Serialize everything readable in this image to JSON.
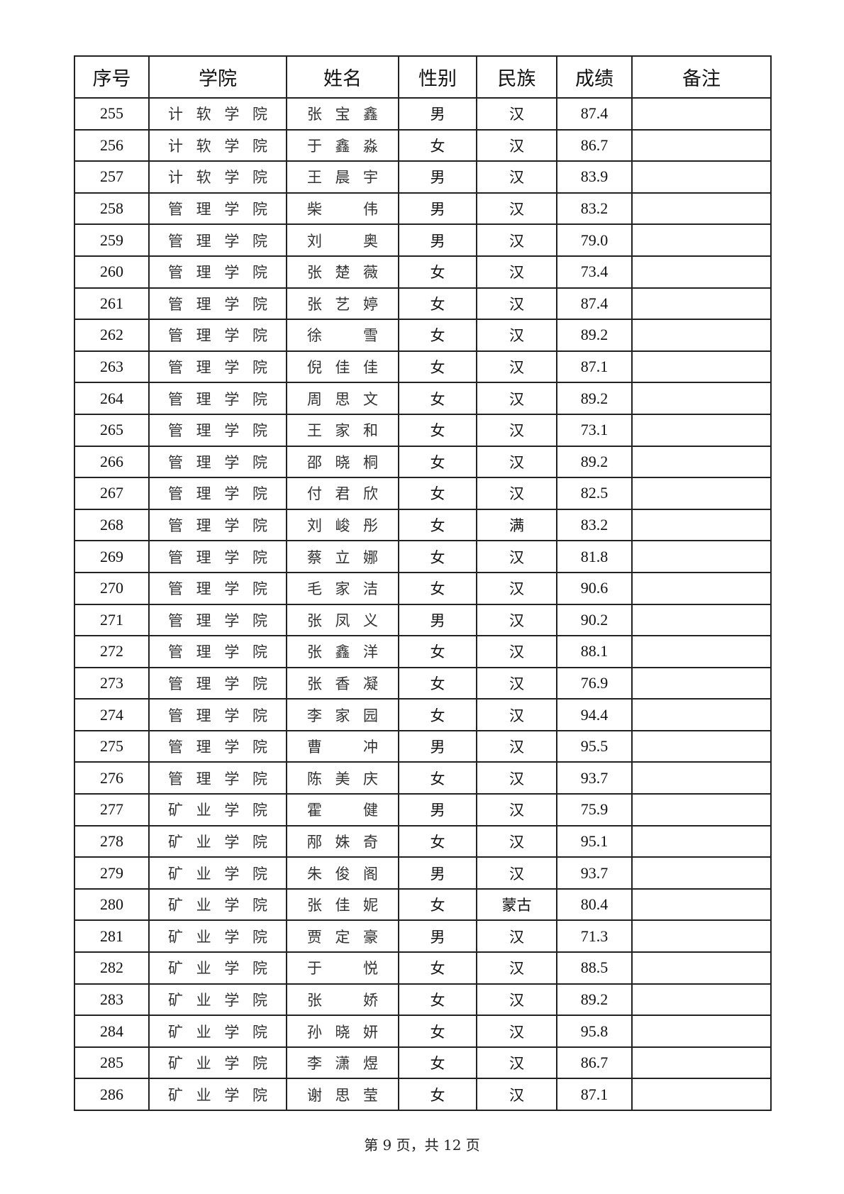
{
  "table": {
    "headers": [
      "序号",
      "学院",
      "姓名",
      "性别",
      "民族",
      "成绩",
      "备注"
    ],
    "rows": [
      [
        "255",
        "计软学院",
        "张宝鑫",
        "男",
        "汉",
        "87.4",
        ""
      ],
      [
        "256",
        "计软学院",
        "于鑫淼",
        "女",
        "汉",
        "86.7",
        ""
      ],
      [
        "257",
        "计软学院",
        "王晨宇",
        "男",
        "汉",
        "83.9",
        ""
      ],
      [
        "258",
        "管理学院",
        "柴伟",
        "男",
        "汉",
        "83.2",
        ""
      ],
      [
        "259",
        "管理学院",
        "刘奥",
        "男",
        "汉",
        "79.0",
        ""
      ],
      [
        "260",
        "管理学院",
        "张楚薇",
        "女",
        "汉",
        "73.4",
        ""
      ],
      [
        "261",
        "管理学院",
        "张艺婷",
        "女",
        "汉",
        "87.4",
        ""
      ],
      [
        "262",
        "管理学院",
        "徐雪",
        "女",
        "汉",
        "89.2",
        ""
      ],
      [
        "263",
        "管理学院",
        "倪佳佳",
        "女",
        "汉",
        "87.1",
        ""
      ],
      [
        "264",
        "管理学院",
        "周思文",
        "女",
        "汉",
        "89.2",
        ""
      ],
      [
        "265",
        "管理学院",
        "王家和",
        "女",
        "汉",
        "73.1",
        ""
      ],
      [
        "266",
        "管理学院",
        "邵晓桐",
        "女",
        "汉",
        "89.2",
        ""
      ],
      [
        "267",
        "管理学院",
        "付君欣",
        "女",
        "汉",
        "82.5",
        ""
      ],
      [
        "268",
        "管理学院",
        "刘峻彤",
        "女",
        "满",
        "83.2",
        ""
      ],
      [
        "269",
        "管理学院",
        "蔡立娜",
        "女",
        "汉",
        "81.8",
        ""
      ],
      [
        "270",
        "管理学院",
        "毛家洁",
        "女",
        "汉",
        "90.6",
        ""
      ],
      [
        "271",
        "管理学院",
        "张凤义",
        "男",
        "汉",
        "90.2",
        ""
      ],
      [
        "272",
        "管理学院",
        "张鑫洋",
        "女",
        "汉",
        "88.1",
        ""
      ],
      [
        "273",
        "管理学院",
        "张香凝",
        "女",
        "汉",
        "76.9",
        ""
      ],
      [
        "274",
        "管理学院",
        "李家园",
        "女",
        "汉",
        "94.4",
        ""
      ],
      [
        "275",
        "管理学院",
        "曹冲",
        "男",
        "汉",
        "95.5",
        ""
      ],
      [
        "276",
        "管理学院",
        "陈美庆",
        "女",
        "汉",
        "93.7",
        ""
      ],
      [
        "277",
        "矿业学院",
        "霍健",
        "男",
        "汉",
        "75.9",
        ""
      ],
      [
        "278",
        "矿业学院",
        "邴姝奇",
        "女",
        "汉",
        "95.1",
        ""
      ],
      [
        "279",
        "矿业学院",
        "朱俊阁",
        "男",
        "汉",
        "93.7",
        ""
      ],
      [
        "280",
        "矿业学院",
        "张佳妮",
        "女",
        "蒙古",
        "80.4",
        ""
      ],
      [
        "281",
        "矿业学院",
        "贾定豪",
        "男",
        "汉",
        "71.3",
        ""
      ],
      [
        "282",
        "矿业学院",
        "于悦",
        "女",
        "汉",
        "88.5",
        ""
      ],
      [
        "283",
        "矿业学院",
        "张娇",
        "女",
        "汉",
        "89.2",
        ""
      ],
      [
        "284",
        "矿业学院",
        "孙晓妍",
        "女",
        "汉",
        "95.8",
        ""
      ],
      [
        "285",
        "矿业学院",
        "李潇煜",
        "女",
        "汉",
        "86.7",
        ""
      ],
      [
        "286",
        "矿业学院",
        "谢思莹",
        "女",
        "汉",
        "87.1",
        ""
      ]
    ]
  },
  "footer": {
    "page_label": "第 9 页，共 12 页"
  }
}
